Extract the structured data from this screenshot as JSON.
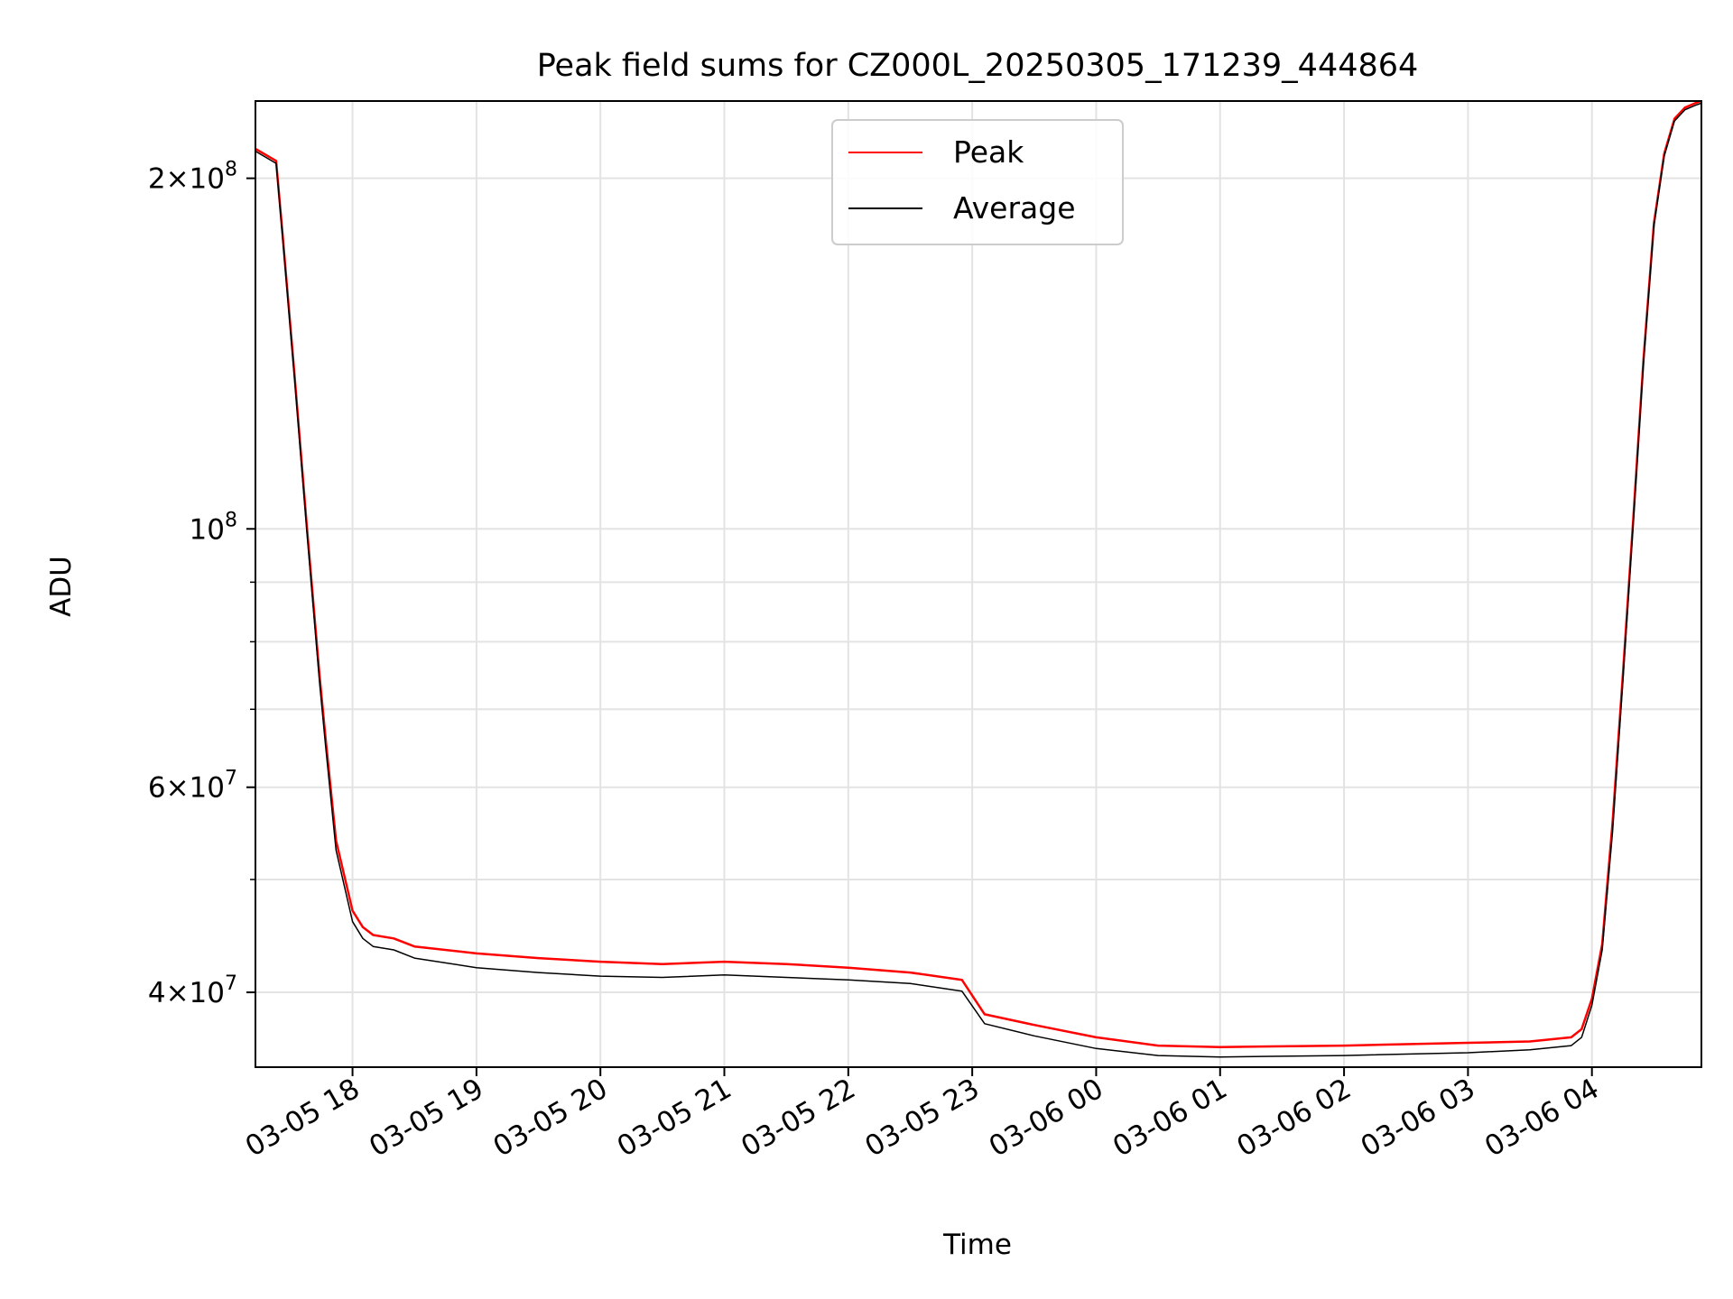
{
  "chart_data": {
    "type": "line",
    "title": "Peak field sums for CZ000L_20250305_171239_444864",
    "xlabel": "Time",
    "ylabel": "ADU",
    "yscale": "log",
    "ylim": [
      34500000,
      233000000
    ],
    "xlim": [
      "2025-03-05 17:13",
      "2025-03-06 04:53"
    ],
    "grid": true,
    "legend_position": "top-center",
    "x_ticks": [
      {
        "x": "2025-03-05 18:00",
        "label": "03-05 18"
      },
      {
        "x": "2025-03-05 19:00",
        "label": "03-05 19"
      },
      {
        "x": "2025-03-05 20:00",
        "label": "03-05 20"
      },
      {
        "x": "2025-03-05 21:00",
        "label": "03-05 21"
      },
      {
        "x": "2025-03-05 22:00",
        "label": "03-05 22"
      },
      {
        "x": "2025-03-05 23:00",
        "label": "03-05 23"
      },
      {
        "x": "2025-03-06 00:00",
        "label": "03-06 00"
      },
      {
        "x": "2025-03-06 01:00",
        "label": "03-06 01"
      },
      {
        "x": "2025-03-06 02:00",
        "label": "03-06 02"
      },
      {
        "x": "2025-03-06 03:00",
        "label": "03-06 03"
      },
      {
        "x": "2025-03-06 04:00",
        "label": "03-06 04"
      }
    ],
    "y_major_ticks": [
      {
        "y": 40000000,
        "base": "4",
        "exp": "7"
      },
      {
        "y": 60000000,
        "base": "6",
        "exp": "7"
      },
      {
        "y": 100000000,
        "base": "",
        "exp": "8"
      },
      {
        "y": 200000000,
        "base": "2",
        "exp": "8"
      }
    ],
    "y_minor_ticks": [
      50000000,
      70000000,
      80000000,
      90000000
    ],
    "series": [
      {
        "name": "Peak",
        "color": "#ff0000",
        "x": [
          "2025-03-05 17:13",
          "2025-03-05 17:23",
          "2025-03-05 17:26",
          "2025-03-05 17:32",
          "2025-03-05 17:38",
          "2025-03-05 17:44",
          "2025-03-05 17:47",
          "2025-03-05 17:52",
          "2025-03-05 18:00",
          "2025-03-05 18:05",
          "2025-03-05 18:10",
          "2025-03-05 18:20",
          "2025-03-05 18:30",
          "2025-03-05 19:00",
          "2025-03-05 19:30",
          "2025-03-05 20:00",
          "2025-03-05 20:30",
          "2025-03-05 21:00",
          "2025-03-05 21:30",
          "2025-03-05 22:00",
          "2025-03-05 22:30",
          "2025-03-05 22:55",
          "2025-03-05 23:06",
          "2025-03-05 23:30",
          "2025-03-06 00:00",
          "2025-03-06 00:30",
          "2025-03-06 01:00",
          "2025-03-06 02:00",
          "2025-03-06 03:00",
          "2025-03-06 03:30",
          "2025-03-06 03:50",
          "2025-03-06 03:55",
          "2025-03-06 04:00",
          "2025-03-06 04:05",
          "2025-03-06 04:10",
          "2025-03-06 04:15",
          "2025-03-06 04:20",
          "2025-03-06 04:25",
          "2025-03-06 04:30",
          "2025-03-06 04:35",
          "2025-03-06 04:40",
          "2025-03-06 04:45",
          "2025-03-06 04:50",
          "2025-03-06 04:53"
        ],
        "y": [
          212000000,
          207000000,
          180000000,
          135000000,
          100000000,
          75000000,
          66000000,
          54000000,
          47000000,
          45500000,
          44800000,
          44500000,
          43800000,
          43200000,
          42800000,
          42500000,
          42300000,
          42500000,
          42300000,
          42000000,
          41600000,
          41000000,
          38300000,
          37500000,
          36600000,
          36000000,
          35900000,
          36000000,
          36200000,
          36300000,
          36600000,
          37200000,
          39500000,
          44000000,
          56000000,
          75000000,
          102000000,
          140000000,
          183000000,
          210000000,
          225000000,
          230000000,
          232000000,
          233000000
        ]
      },
      {
        "name": "Average",
        "color": "#000000",
        "x": [
          "2025-03-05 17:13",
          "2025-03-05 17:23",
          "2025-03-05 17:26",
          "2025-03-05 17:32",
          "2025-03-05 17:38",
          "2025-03-05 17:44",
          "2025-03-05 17:47",
          "2025-03-05 17:52",
          "2025-03-05 18:00",
          "2025-03-05 18:05",
          "2025-03-05 18:10",
          "2025-03-05 18:20",
          "2025-03-05 18:30",
          "2025-03-05 19:00",
          "2025-03-05 19:30",
          "2025-03-05 20:00",
          "2025-03-05 20:30",
          "2025-03-05 21:00",
          "2025-03-05 21:30",
          "2025-03-05 22:00",
          "2025-03-05 22:30",
          "2025-03-05 22:55",
          "2025-03-05 23:06",
          "2025-03-05 23:30",
          "2025-03-06 00:00",
          "2025-03-06 00:30",
          "2025-03-06 01:00",
          "2025-03-06 02:00",
          "2025-03-06 03:00",
          "2025-03-06 03:30",
          "2025-03-06 03:50",
          "2025-03-06 03:55",
          "2025-03-06 04:00",
          "2025-03-06 04:05",
          "2025-03-06 04:10",
          "2025-03-06 04:15",
          "2025-03-06 04:20",
          "2025-03-06 04:25",
          "2025-03-06 04:30",
          "2025-03-06 04:35",
          "2025-03-06 04:40",
          "2025-03-06 04:45",
          "2025-03-06 04:50",
          "2025-03-06 04:53"
        ],
        "y": [
          211000000,
          206000000,
          179000000,
          134000000,
          99000000,
          74000000,
          65000000,
          53000000,
          46000000,
          44500000,
          43800000,
          43500000,
          42800000,
          42000000,
          41600000,
          41300000,
          41200000,
          41400000,
          41200000,
          41000000,
          40700000,
          40100000,
          37600000,
          36700000,
          35800000,
          35300000,
          35200000,
          35300000,
          35500000,
          35700000,
          36000000,
          36600000,
          39000000,
          43500000,
          55000000,
          74000000,
          101000000,
          139000000,
          182000000,
          209000000,
          224000000,
          229000000,
          231000000,
          232000000
        ]
      }
    ]
  }
}
